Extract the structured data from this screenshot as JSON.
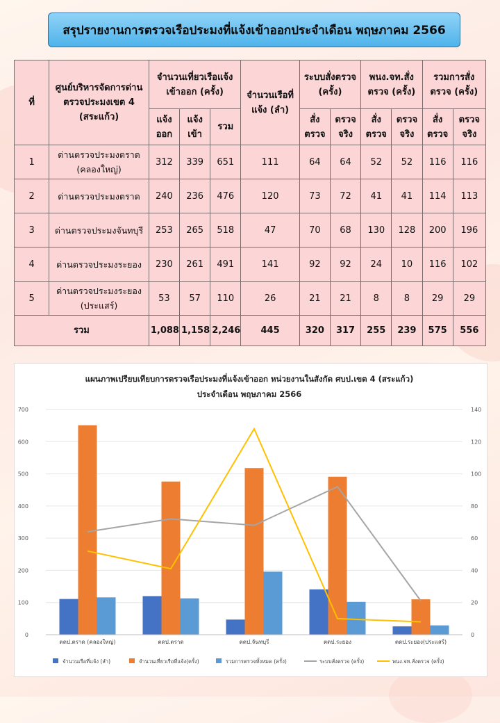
{
  "title": "สรุปรายงานการตรวจเรือประมงที่แจ้งเข้าออกประจำเดือน พฤษภาคม 2566",
  "table": {
    "headers": {
      "no": "ที่",
      "center": "ศูนย์บริหารจัดการด่านตรวจประมงเขต 4 (สระแก้ว)",
      "trips": "จำนวนเที่ยวเรือแจ้งเข้าออก (ครั้ง)",
      "trips_out": "แจ้งออก",
      "trips_in": "แจ้งเข้า",
      "trips_total": "รวม",
      "vessels": "จำนวนเรือที่แจ้ง (ลำ)",
      "system": "ระบบสั่งตรวจ (ครั้ง)",
      "officer": "พนง.จท.สั่งตรวจ (ครั้ง)",
      "all_orders": "รวมการสั่งตรวจ (ครั้ง)",
      "ordered": "สั่งตรวจ",
      "inspected": "ตรวจจริง"
    },
    "rows": [
      {
        "no": "1",
        "name": "ด่านตรวจประมงตราด (คลองใหญ่)",
        "out": "312",
        "in": "339",
        "total": "651",
        "vessels": "111",
        "sys_o": "64",
        "sys_i": "64",
        "off_o": "52",
        "off_i": "52",
        "all_o": "116",
        "all_i": "116"
      },
      {
        "no": "2",
        "name": "ด่านตรวจประมงตราด",
        "out": "240",
        "in": "236",
        "total": "476",
        "vessels": "120",
        "sys_o": "73",
        "sys_i": "72",
        "off_o": "41",
        "off_i": "41",
        "all_o": "114",
        "all_i": "113"
      },
      {
        "no": "3",
        "name": "ด่านตรวจประมงจันทบุรี",
        "out": "253",
        "in": "265",
        "total": "518",
        "vessels": "47",
        "sys_o": "70",
        "sys_i": "68",
        "off_o": "130",
        "off_i": "128",
        "all_o": "200",
        "all_i": "196"
      },
      {
        "no": "4",
        "name": "ด่านตรวจประมงระยอง",
        "out": "230",
        "in": "261",
        "total": "491",
        "vessels": "141",
        "sys_o": "92",
        "sys_i": "92",
        "off_o": "24",
        "off_i": "10",
        "all_o": "116",
        "all_i": "102"
      },
      {
        "no": "5",
        "name": "ด่านตรวจประมงระยอง (ประแสร์)",
        "out": "53",
        "in": "57",
        "total": "110",
        "vessels": "26",
        "sys_o": "21",
        "sys_i": "21",
        "off_o": "8",
        "off_i": "8",
        "all_o": "29",
        "all_i": "29"
      }
    ],
    "total": {
      "label": "รวม",
      "out": "1,088",
      "in": "1,158",
      "total": "2,246",
      "vessels": "445",
      "sys_o": "320",
      "sys_i": "317",
      "off_o": "255",
      "off_i": "239",
      "all_o": "575",
      "all_i": "556"
    }
  },
  "chart_data": {
    "type": "bar",
    "title": "แผนภาพเปรียบเทียบการตรวจเรือประมงที่แจ้งเข้าออก หน่วยงานในสังกัด ศบป.เขต 4 (สระแก้ว)",
    "subtitle": "ประจำเดือน พฤษภาคม 2566",
    "categories": [
      "ตดป.ตราด (คลองใหญ่)",
      "ตดป.ตราด",
      "ตดป.จันทบุรี",
      "ตดป.ระยอง",
      "ตดป.ระยอง(ประแสร์)"
    ],
    "left_axis": {
      "min": 0,
      "max": 700,
      "ticks": [
        "0",
        "100",
        "200",
        "300",
        "400",
        "500",
        "600",
        "700"
      ]
    },
    "right_axis": {
      "min": 0,
      "max": 140,
      "ticks": [
        "0",
        "20",
        "40",
        "60",
        "80",
        "100",
        "120",
        "140"
      ]
    },
    "series": [
      {
        "name": "จำนวนเรือที่แจ้ง (ลำ)",
        "kind": "bar",
        "axis": "left",
        "color": "#4472c4",
        "values": [
          111,
          120,
          47,
          141,
          26
        ]
      },
      {
        "name": "จำนวนเที่ยวเรือที่แจ้ง(ครั้ง)",
        "kind": "bar",
        "axis": "left",
        "color": "#ed7d31",
        "values": [
          651,
          476,
          518,
          491,
          110
        ]
      },
      {
        "name": "รวมการตรวจทั้งหมด (ครั้ง)",
        "kind": "bar",
        "axis": "left",
        "color": "#5b9bd5",
        "values": [
          116,
          113,
          196,
          102,
          29
        ]
      },
      {
        "name": "ระบบสั่งตรวจ (ครั้ง)",
        "kind": "line",
        "axis": "right",
        "color": "#a5a5a5",
        "values": [
          64,
          72,
          68,
          92,
          21
        ]
      },
      {
        "name": "พนง.จท.สั่งตรวจ (ครั้ง)",
        "kind": "line",
        "axis": "right",
        "color": "#ffc000",
        "values": [
          52,
          41,
          128,
          10,
          8
        ]
      }
    ]
  }
}
